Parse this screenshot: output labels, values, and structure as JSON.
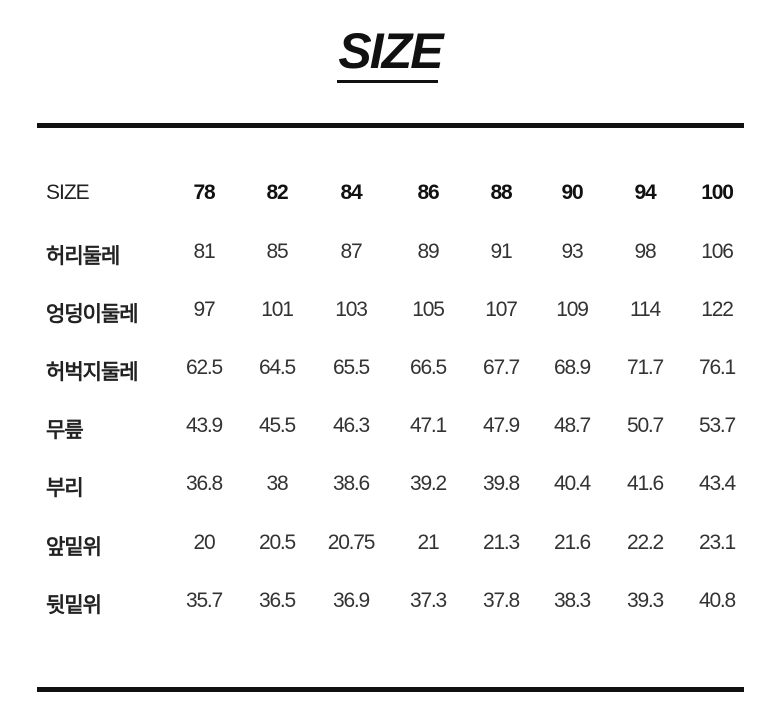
{
  "title": "SIZE",
  "table": {
    "header": {
      "label": "SIZE",
      "values": [
        "78",
        "82",
        "84",
        "86",
        "88",
        "90",
        "94",
        "100"
      ]
    },
    "rows": [
      {
        "label": "허리둘레",
        "values": [
          "81",
          "85",
          "87",
          "89",
          "91",
          "93",
          "98",
          "106"
        ]
      },
      {
        "label": "엉덩이둘레",
        "values": [
          "97",
          "101",
          "103",
          "105",
          "107",
          "109",
          "114",
          "122"
        ]
      },
      {
        "label": "허벅지둘레",
        "values": [
          "62.5",
          "64.5",
          "65.5",
          "66.5",
          "67.7",
          "68.9",
          "71.7",
          "76.1"
        ]
      },
      {
        "label": "무릎",
        "values": [
          "43.9",
          "45.5",
          "46.3",
          "47.1",
          "47.9",
          "48.7",
          "50.7",
          "53.7"
        ]
      },
      {
        "label": "부리",
        "values": [
          "36.8",
          "38",
          "38.6",
          "39.2",
          "39.8",
          "40.4",
          "41.6",
          "43.4"
        ]
      },
      {
        "label": "앞밑위",
        "values": [
          "20",
          "20.5",
          "20.75",
          "21",
          "21.3",
          "21.6",
          "22.2",
          "23.1"
        ]
      },
      {
        "label": "뒷밑위",
        "values": [
          "35.7",
          "36.5",
          "36.9",
          "37.3",
          "37.8",
          "38.3",
          "39.3",
          "40.8"
        ]
      }
    ]
  }
}
